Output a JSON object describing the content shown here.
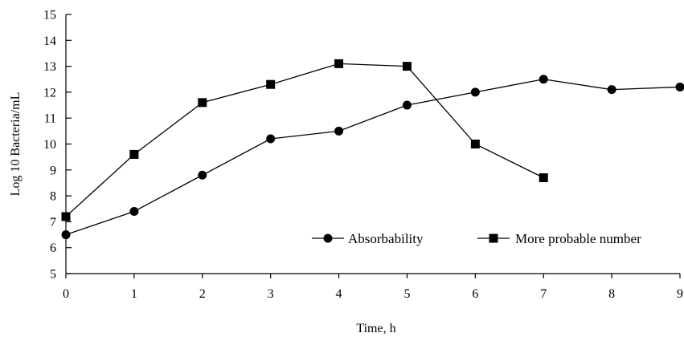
{
  "chart_data": {
    "type": "line",
    "title": "",
    "xlabel": "Time, h",
    "ylabel": "Log 10 Bacteria/mL",
    "xlim": [
      0,
      9
    ],
    "ylim": [
      5,
      15
    ],
    "xticks": [
      0,
      1,
      2,
      3,
      4,
      5,
      6,
      7,
      8,
      9
    ],
    "yticks": [
      5,
      6,
      7,
      8,
      9,
      10,
      11,
      12,
      13,
      14,
      15
    ],
    "grid": false,
    "legend_position": "bottom-right",
    "series": [
      {
        "name": "Absorbability",
        "marker": "circle",
        "color": "#000000",
        "x": [
          0,
          1,
          2,
          3,
          4,
          5,
          6,
          7,
          8,
          9
        ],
        "values": [
          6.5,
          7.4,
          8.8,
          10.2,
          10.5,
          11.5,
          12.0,
          12.5,
          12.1,
          12.2
        ]
      },
      {
        "name": "More probable number",
        "marker": "square",
        "color": "#000000",
        "x": [
          0,
          1,
          2,
          3,
          4,
          5,
          6,
          7
        ],
        "values": [
          7.2,
          9.6,
          11.6,
          12.3,
          13.1,
          13.0,
          10.0,
          8.7
        ]
      }
    ]
  }
}
